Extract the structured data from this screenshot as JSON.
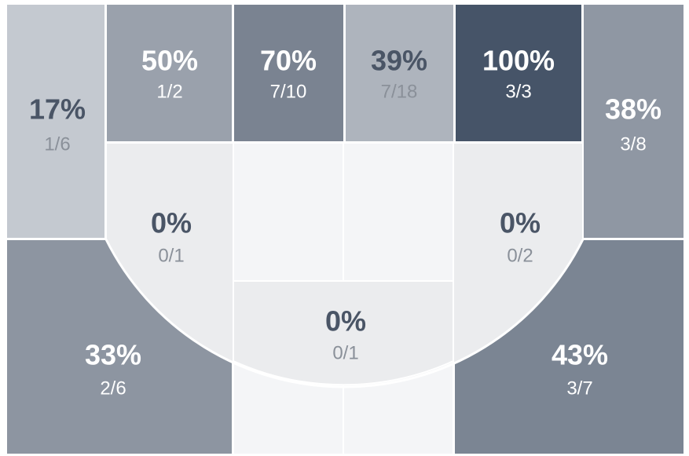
{
  "zones": [
    {
      "pct": "17%",
      "frac": "1/6"
    },
    {
      "pct": "50%",
      "frac": "1/2"
    },
    {
      "pct": "70%",
      "frac": "7/10"
    },
    {
      "pct": "39%",
      "frac": "7/18"
    },
    {
      "pct": "100%",
      "frac": "3/3"
    },
    {
      "pct": "38%",
      "frac": "3/8"
    },
    {
      "pct": "0%",
      "frac": "0/1"
    },
    {
      "pct": "0%",
      "frac": "0/2"
    },
    {
      "pct": "0%",
      "frac": "0/1"
    },
    {
      "pct": "33%",
      "frac": "2/6"
    },
    {
      "pct": "43%",
      "frac": "3/7"
    }
  ]
}
